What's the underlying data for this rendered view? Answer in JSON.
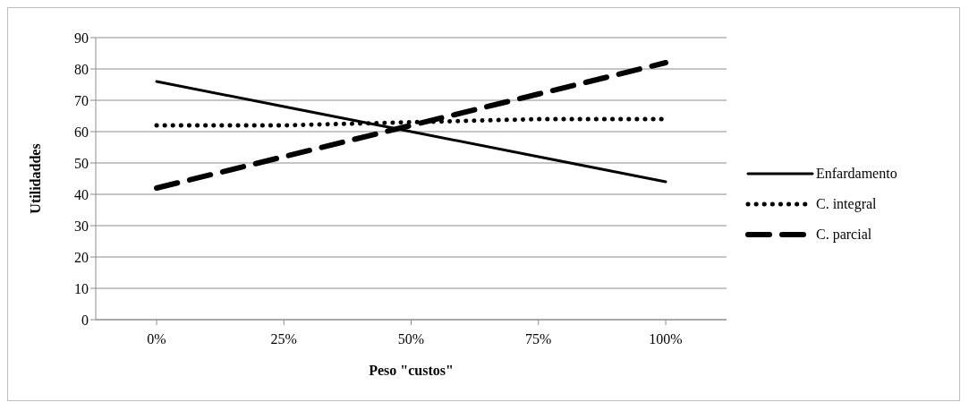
{
  "chart_data": {
    "type": "line",
    "xlabel": "Peso \"custos\"",
    "ylabel": "Utilidaddes",
    "categories": [
      "0%",
      "25%",
      "50%",
      "75%",
      "100%"
    ],
    "series": [
      {
        "name": "Enfardamento",
        "color": "#000000",
        "line_style": "solid",
        "values": [
          76,
          68,
          60,
          52,
          44
        ]
      },
      {
        "name": "C. integral",
        "color": "#000000",
        "line_style": "dotted",
        "values": [
          62,
          62,
          63,
          64,
          64
        ]
      },
      {
        "name": "C. parcial",
        "color": "#000000",
        "line_style": "dashed",
        "values": [
          42,
          52,
          62,
          72,
          82
        ]
      }
    ],
    "ylim": [
      0,
      90
    ],
    "yticks": [
      0,
      10,
      20,
      30,
      40,
      50,
      60,
      70,
      80,
      90
    ],
    "grid": "y",
    "legend": "right",
    "marker": "none"
  }
}
